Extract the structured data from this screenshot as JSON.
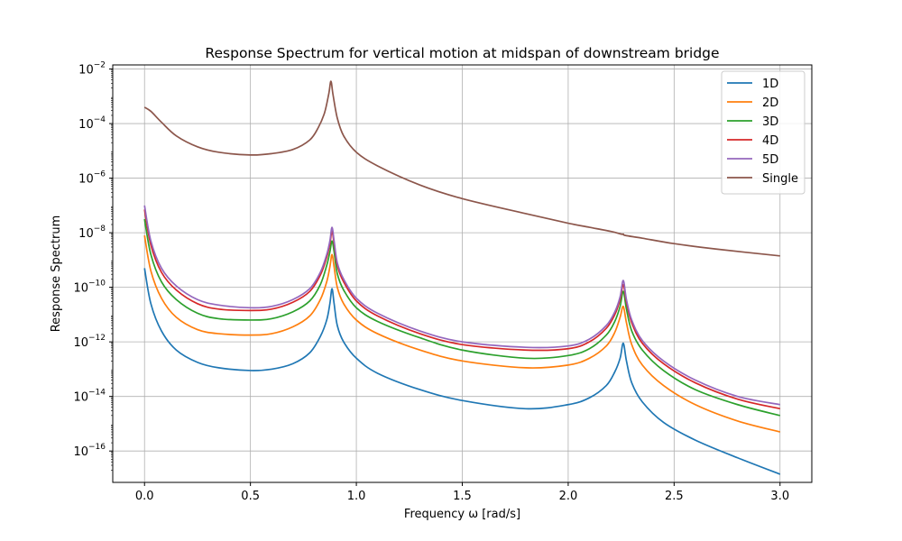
{
  "chart_data": {
    "type": "line",
    "title": "Response Spectrum for vertical motion at midspan of downstream bridge",
    "xlabel": "Frequency ω [rad/s]",
    "ylabel": "Response Spectrum",
    "xlim": [
      -0.15,
      3.15
    ],
    "ylim_log10": [
      -17.15,
      -1.85
    ],
    "y_scale": "log",
    "grid": true,
    "legend_position": "top-right",
    "x_ticks": [
      {
        "value": 0.0,
        "label": "0.0"
      },
      {
        "value": 0.5,
        "label": "0.5"
      },
      {
        "value": 1.0,
        "label": "1.0"
      },
      {
        "value": 1.5,
        "label": "1.5"
      },
      {
        "value": 2.0,
        "label": "2.0"
      },
      {
        "value": 2.5,
        "label": "2.5"
      },
      {
        "value": 3.0,
        "label": "3.0"
      }
    ],
    "y_ticks": [
      {
        "exp": -2,
        "base": "10",
        "sup": "−2"
      },
      {
        "exp": -4,
        "base": "10",
        "sup": "−4"
      },
      {
        "exp": -6,
        "base": "10",
        "sup": "−6"
      },
      {
        "exp": -8,
        "base": "10",
        "sup": "−8"
      },
      {
        "exp": -10,
        "base": "10",
        "sup": "−10"
      },
      {
        "exp": -12,
        "base": "10",
        "sup": "−12"
      },
      {
        "exp": -14,
        "base": "10",
        "sup": "−14"
      },
      {
        "exp": -16,
        "base": "10",
        "sup": "−16"
      }
    ],
    "series": [
      {
        "name": "1D",
        "color": "#1f77b4",
        "x": [
          0.0,
          0.03,
          0.08,
          0.15,
          0.25,
          0.35,
          0.5,
          0.6,
          0.7,
          0.78,
          0.83,
          0.86,
          0.875,
          0.885,
          0.895,
          0.91,
          0.94,
          1.0,
          1.1,
          1.3,
          1.5,
          1.8,
          2.0,
          2.1,
          2.18,
          2.22,
          2.245,
          2.26,
          2.275,
          2.3,
          2.35,
          2.45,
          2.6,
          2.8,
          3.0
        ],
        "y_log10": [
          -9.3,
          -10.6,
          -11.6,
          -12.3,
          -12.75,
          -12.95,
          -13.05,
          -13.0,
          -12.8,
          -12.4,
          -11.8,
          -11.2,
          -10.6,
          -10.05,
          -10.6,
          -11.4,
          -12.0,
          -12.6,
          -13.15,
          -13.75,
          -14.15,
          -14.45,
          -14.3,
          -14.05,
          -13.6,
          -13.1,
          -12.6,
          -12.05,
          -12.7,
          -13.5,
          -14.2,
          -14.95,
          -15.6,
          -16.25,
          -16.85
        ]
      },
      {
        "name": "2D",
        "color": "#ff7f0e",
        "x": [
          0.0,
          0.03,
          0.08,
          0.15,
          0.25,
          0.35,
          0.5,
          0.6,
          0.7,
          0.78,
          0.83,
          0.86,
          0.875,
          0.885,
          0.895,
          0.91,
          0.94,
          1.0,
          1.1,
          1.3,
          1.5,
          1.8,
          2.0,
          2.1,
          2.18,
          2.22,
          2.245,
          2.26,
          2.275,
          2.3,
          2.35,
          2.45,
          2.6,
          2.8,
          3.0
        ],
        "y_log10": [
          -8.1,
          -9.4,
          -10.4,
          -11.1,
          -11.55,
          -11.7,
          -11.75,
          -11.7,
          -11.45,
          -11.05,
          -10.45,
          -9.8,
          -9.25,
          -8.8,
          -9.25,
          -10.0,
          -10.6,
          -11.2,
          -11.7,
          -12.3,
          -12.7,
          -12.95,
          -12.85,
          -12.6,
          -12.15,
          -11.65,
          -11.1,
          -10.7,
          -11.3,
          -12.1,
          -12.85,
          -13.6,
          -14.3,
          -14.9,
          -15.3
        ]
      },
      {
        "name": "3D",
        "color": "#2ca02c",
        "x": [
          0.0,
          0.03,
          0.08,
          0.15,
          0.25,
          0.35,
          0.5,
          0.6,
          0.7,
          0.78,
          0.83,
          0.86,
          0.875,
          0.885,
          0.895,
          0.91,
          0.94,
          1.0,
          1.1,
          1.3,
          1.5,
          1.8,
          2.0,
          2.1,
          2.18,
          2.22,
          2.245,
          2.26,
          2.275,
          2.3,
          2.35,
          2.45,
          2.6,
          2.8,
          3.0
        ],
        "y_log10": [
          -7.5,
          -8.8,
          -9.8,
          -10.45,
          -10.95,
          -11.15,
          -11.2,
          -11.15,
          -10.9,
          -10.5,
          -9.9,
          -9.2,
          -8.7,
          -8.3,
          -8.7,
          -9.5,
          -10.1,
          -10.75,
          -11.25,
          -11.85,
          -12.3,
          -12.6,
          -12.5,
          -12.25,
          -11.75,
          -11.25,
          -10.7,
          -10.15,
          -10.8,
          -11.6,
          -12.3,
          -13.05,
          -13.75,
          -14.3,
          -14.7
        ]
      },
      {
        "name": "4D",
        "color": "#d62728",
        "x": [
          0.0,
          0.03,
          0.08,
          0.15,
          0.25,
          0.35,
          0.5,
          0.6,
          0.7,
          0.78,
          0.83,
          0.86,
          0.875,
          0.885,
          0.895,
          0.91,
          0.94,
          1.0,
          1.1,
          1.3,
          1.5,
          1.8,
          2.0,
          2.1,
          2.18,
          2.22,
          2.245,
          2.26,
          2.275,
          2.3,
          2.35,
          2.45,
          2.6,
          2.8,
          3.0
        ],
        "y_log10": [
          -7.15,
          -8.45,
          -9.45,
          -10.1,
          -10.6,
          -10.8,
          -10.85,
          -10.8,
          -10.55,
          -10.15,
          -9.55,
          -8.9,
          -8.4,
          -7.95,
          -8.4,
          -9.2,
          -9.8,
          -10.5,
          -11.05,
          -11.7,
          -12.1,
          -12.3,
          -12.25,
          -12.0,
          -11.5,
          -11.0,
          -10.45,
          -9.9,
          -10.55,
          -11.3,
          -12.05,
          -12.8,
          -13.5,
          -14.1,
          -14.45
        ]
      },
      {
        "name": "5D",
        "color": "#9467bd",
        "x": [
          0.0,
          0.03,
          0.08,
          0.15,
          0.25,
          0.35,
          0.5,
          0.6,
          0.7,
          0.78,
          0.83,
          0.86,
          0.875,
          0.885,
          0.895,
          0.91,
          0.94,
          1.0,
          1.1,
          1.3,
          1.5,
          1.8,
          2.0,
          2.1,
          2.18,
          2.22,
          2.245,
          2.26,
          2.275,
          2.3,
          2.35,
          2.45,
          2.6,
          2.8,
          3.0
        ],
        "y_log10": [
          -7.0,
          -8.3,
          -9.3,
          -9.95,
          -10.45,
          -10.65,
          -10.75,
          -10.7,
          -10.45,
          -10.05,
          -9.45,
          -8.8,
          -8.3,
          -7.8,
          -8.3,
          -9.1,
          -9.7,
          -10.4,
          -10.95,
          -11.6,
          -12.0,
          -12.2,
          -12.15,
          -11.9,
          -11.4,
          -10.9,
          -10.35,
          -9.75,
          -10.45,
          -11.2,
          -11.95,
          -12.7,
          -13.4,
          -14.0,
          -14.3
        ]
      },
      {
        "name": "Single",
        "color": "#8c564b",
        "x": [
          0.0,
          0.03,
          0.08,
          0.15,
          0.25,
          0.35,
          0.5,
          0.6,
          0.7,
          0.78,
          0.82,
          0.85,
          0.87,
          0.88,
          0.89,
          0.91,
          0.94,
          1.0,
          1.1,
          1.3,
          1.5,
          1.8,
          2.0,
          2.1,
          2.2,
          2.25,
          2.26,
          2.27,
          2.35,
          2.5,
          2.7,
          3.0
        ],
        "y_log10": [
          -3.4,
          -3.55,
          -3.95,
          -4.45,
          -4.85,
          -5.05,
          -5.15,
          -5.1,
          -4.95,
          -4.6,
          -4.15,
          -3.6,
          -2.9,
          -2.45,
          -2.95,
          -3.8,
          -4.45,
          -5.05,
          -5.55,
          -6.25,
          -6.75,
          -7.3,
          -7.65,
          -7.8,
          -7.95,
          -8.05,
          -8.05,
          -8.1,
          -8.2,
          -8.4,
          -8.6,
          -8.85
        ]
      }
    ]
  }
}
